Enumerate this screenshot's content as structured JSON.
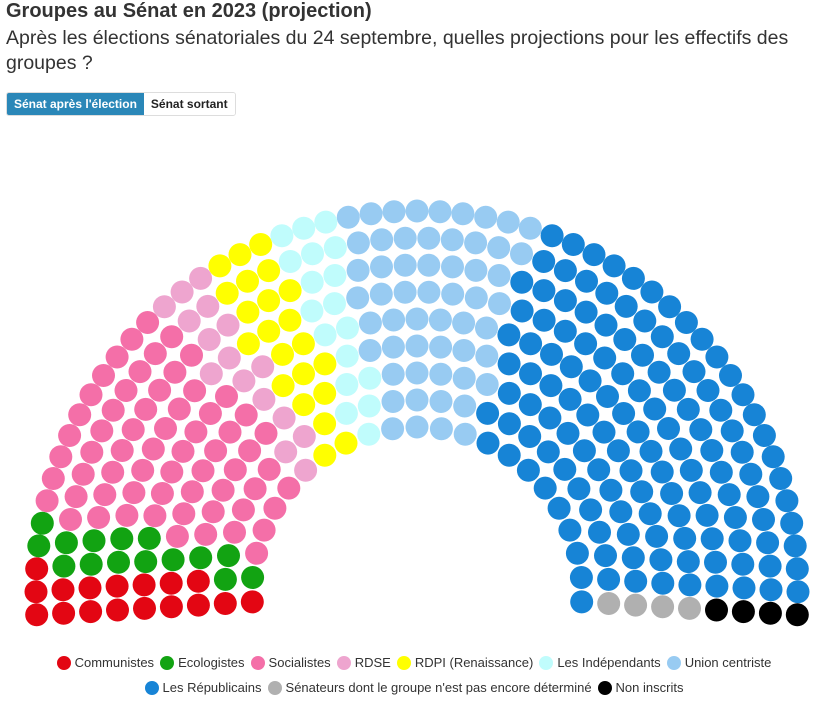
{
  "header": {
    "title": "Groupes au Sénat en 2023 (projection)",
    "subtitle": "Après les élections sénatoriales du 24 septembre, quelles projections pour les effectifs des groupes ?"
  },
  "tabs": [
    {
      "label": "Sénat après l'élection",
      "active": true
    },
    {
      "label": "Sénat sortant",
      "active": false
    }
  ],
  "chart_data": {
    "type": "parliament",
    "total_seats": 348,
    "legend_placement": "bottom",
    "series": [
      {
        "name": "Communistes",
        "seats": 17,
        "color": "#e30613"
      },
      {
        "name": "Ecologistes",
        "seats": 15,
        "color": "#12a312"
      },
      {
        "name": "Socialistes",
        "seats": 64,
        "color": "#f46fa8"
      },
      {
        "name": "RDSE",
        "seats": 16,
        "color": "#eea5cf"
      },
      {
        "name": "RDPI (Renaissance)",
        "seats": 22,
        "color": "#ffff00"
      },
      {
        "name": "Les Indépendants",
        "seats": 18,
        "color": "#c0fcfc"
      },
      {
        "name": "Union centriste",
        "seats": 56,
        "color": "#98cbf2"
      },
      {
        "name": "Les Républicains",
        "seats": 132,
        "color": "#1784d6"
      },
      {
        "name": "Sénateurs dont le groupe n'est pas encore déterminé",
        "seats": 4,
        "color": "#b0b0b0"
      },
      {
        "name": "Non inscrits",
        "seats": 4,
        "color": "#000000"
      }
    ]
  }
}
